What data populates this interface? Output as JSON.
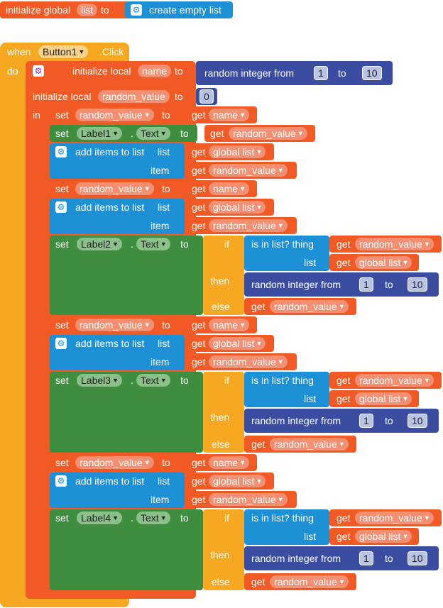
{
  "global_init": {
    "label": "initialize global",
    "var": "list",
    "to": "to",
    "value": "create empty list"
  },
  "event": {
    "when": "when",
    "component": "Button1",
    "event": ".Click",
    "do": "do"
  },
  "local_name": {
    "label": "initialize local",
    "var": "name",
    "to": "to",
    "value": "random integer from",
    "from": "1",
    "to_word": "to",
    "max": "10"
  },
  "local_random": {
    "label": "initialize local",
    "var": "random_value",
    "to": "to",
    "value": "0",
    "in": "in"
  },
  "words": {
    "set": "set",
    "to": "to",
    "get": "get",
    "dot": ".",
    "text": "Text",
    "add_items": "add items to list",
    "list": "list",
    "item": "item",
    "if": "if",
    "then": "then",
    "else": "else",
    "is_in_list": "is in list? thing",
    "random_integer": "random integer from",
    "one": "1",
    "ten": "10",
    "name": "name",
    "random_value": "random_value",
    "global_list": "global list"
  },
  "labels": [
    "Label1",
    "Label2",
    "Label3",
    "Label4"
  ]
}
